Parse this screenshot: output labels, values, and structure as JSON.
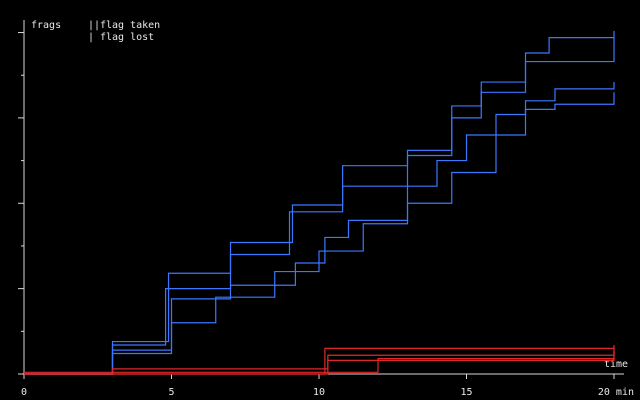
{
  "chart_data": {
    "type": "line",
    "step": true,
    "y_label": "frags",
    "x_label": "time",
    "legend": [
      {
        "symbol": "||",
        "label": "flag taken"
      },
      {
        "symbol": "|",
        "label": "flag lost"
      }
    ],
    "xlim": [
      0,
      20
    ],
    "xticks": [
      0,
      5,
      10,
      15,
      {
        "value": 20,
        "label": "20 min"
      }
    ],
    "ylim": [
      0,
      205
    ],
    "yticks": [
      0,
      25,
      50,
      75,
      100,
      125,
      150,
      175,
      200
    ],
    "series": [
      {
        "color": "#3a78ff",
        "x": [
          0,
          3,
          4.9,
          7,
          9.1,
          10.8,
          13,
          14.5,
          15.5,
          17,
          17.8,
          20
        ],
        "values": [
          0,
          19,
          59,
          77,
          99,
          122,
          131,
          157,
          171,
          188,
          197,
          201
        ]
      },
      {
        "color": "#3a78ff",
        "x": [
          0,
          3,
          4.8,
          7,
          9,
          10.8,
          13,
          14.5,
          15.5,
          17,
          20
        ],
        "values": [
          0,
          17,
          50,
          70,
          95,
          110,
          128,
          150,
          165,
          183,
          197
        ]
      },
      {
        "color": "#3a78ff",
        "x": [
          0,
          3,
          5,
          7,
          9.2,
          10.2,
          11,
          13,
          14,
          15,
          16,
          17,
          18,
          20
        ],
        "values": [
          0,
          14,
          44,
          52,
          65,
          80,
          90,
          110,
          125,
          140,
          152,
          160,
          167,
          171
        ]
      },
      {
        "color": "#3a78ff",
        "x": [
          0,
          3,
          5,
          6.5,
          8.5,
          10,
          11.5,
          13,
          14.5,
          16,
          17,
          18,
          20
        ],
        "values": [
          0,
          12,
          30,
          45,
          60,
          72,
          88,
          100,
          118,
          140,
          155,
          158,
          165
        ]
      },
      {
        "color": "#e02828",
        "x": [
          0,
          3,
          10.3,
          20
        ],
        "values": [
          0,
          3,
          11,
          16
        ]
      },
      {
        "color": "#e02828",
        "x": [
          0,
          10.2,
          20
        ],
        "values": [
          0,
          15,
          17
        ]
      },
      {
        "color": "#e02828",
        "x": [
          0,
          10.3,
          20
        ],
        "values": [
          0,
          8,
          13
        ]
      },
      {
        "color": "#e02828",
        "x": [
          0,
          12,
          20
        ],
        "values": [
          1,
          9,
          14
        ]
      }
    ]
  }
}
